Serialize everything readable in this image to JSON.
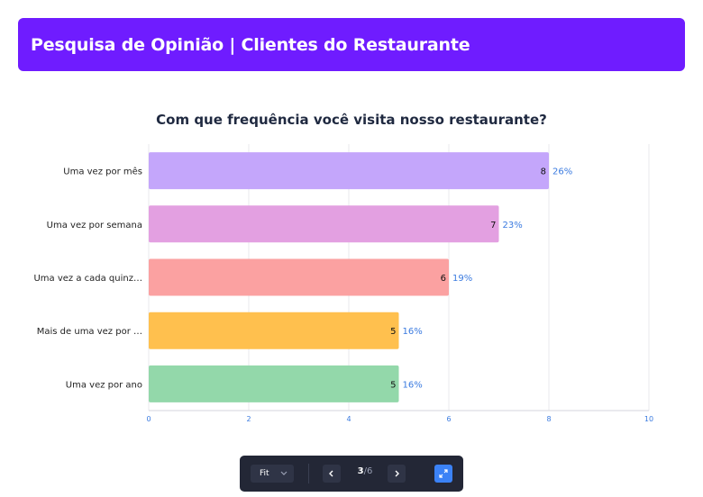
{
  "header": {
    "title": "Pesquisa de Opinião | Clientes do Restaurante"
  },
  "chart_data": {
    "type": "bar",
    "orientation": "horizontal",
    "title": "Com que frequência você visita nosso restaurante?",
    "categories": [
      "Uma vez por mês",
      "Uma vez por semana",
      "Uma vez a cada quinz…",
      "Mais de uma vez por …",
      "Uma vez por ano"
    ],
    "values": [
      8,
      7,
      6,
      5,
      5
    ],
    "percent_labels": [
      "26%",
      "23%",
      "19%",
      "16%",
      "16%"
    ],
    "colors": [
      "#c4a6fb",
      "#e3a0e1",
      "#fba1a1",
      "#ffc04e",
      "#93d8aa"
    ],
    "xlim": [
      0,
      10
    ],
    "xticks": [
      "0",
      "2",
      "4",
      "6",
      "8",
      "10"
    ],
    "grid": true,
    "label_color": "#3b7be0"
  },
  "toolbar": {
    "fit_label": "Fit",
    "current_page": "3",
    "separator": "/",
    "total_pages": "6"
  }
}
